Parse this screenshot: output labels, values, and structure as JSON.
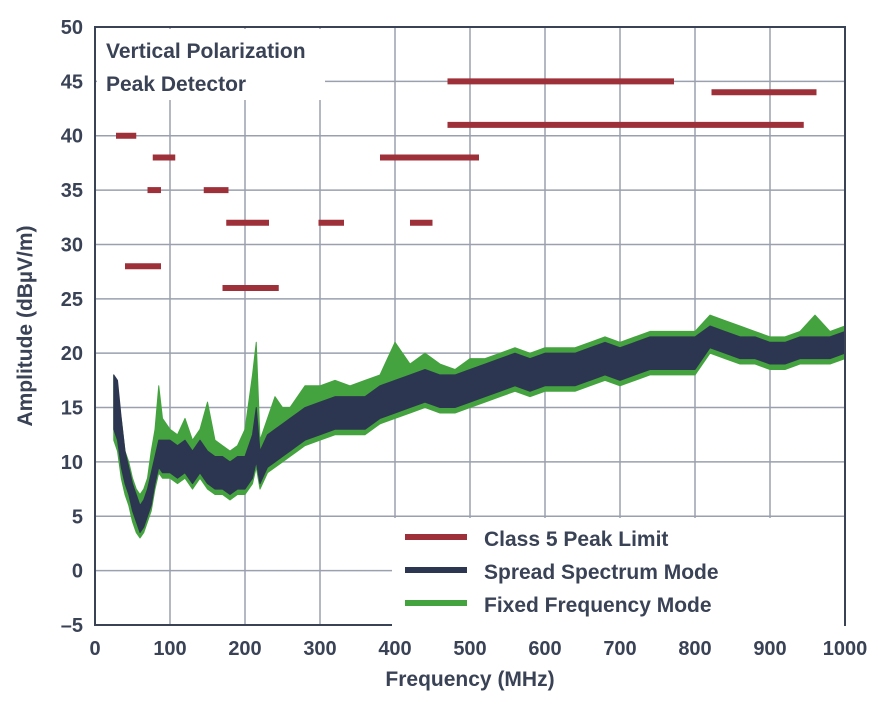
{
  "chart_data": {
    "type": "line",
    "annotations": [
      "Vertical Polarization",
      "Peak Detector"
    ],
    "xlabel": "Frequency (MHz)",
    "ylabel": "Amplitude (dBµV/m)",
    "xlim": [
      0,
      1000
    ],
    "ylim": [
      -5,
      50
    ],
    "x_ticks": [
      "0",
      "100",
      "200",
      "300",
      "400",
      "500",
      "600",
      "700",
      "800",
      "900",
      "1000"
    ],
    "y_ticks": [
      "50",
      "45",
      "40",
      "35",
      "30",
      "25",
      "20",
      "15",
      "10",
      "5",
      "0",
      "–5"
    ],
    "grid": true,
    "legend_position": "bottom-right",
    "series": [
      {
        "name": "Class 5 Peak Limit",
        "color": "#9e3039",
        "segments": [
          {
            "x": [
              28,
              55
            ],
            "y": 40
          },
          {
            "x": [
              77,
              107
            ],
            "y": 38
          },
          {
            "x": [
              70,
              88
            ],
            "y": 35
          },
          {
            "x": [
              145,
              178
            ],
            "y": 35
          },
          {
            "x": [
              40,
              88
            ],
            "y": 28
          },
          {
            "x": [
              175,
              232
            ],
            "y": 32
          },
          {
            "x": [
              170,
              245
            ],
            "y": 26
          },
          {
            "x": [
              298,
              332
            ],
            "y": 32
          },
          {
            "x": [
              420,
              450
            ],
            "y": 32
          },
          {
            "x": [
              380,
              512
            ],
            "y": 38
          },
          {
            "x": [
              470,
              772
            ],
            "y": 45
          },
          {
            "x": [
              470,
              945
            ],
            "y": 41
          },
          {
            "x": [
              822,
              962
            ],
            "y": 44
          }
        ]
      },
      {
        "name": "Spread Spectrum Mode",
        "color": "#2d3650",
        "x": [
          25,
          30,
          35,
          40,
          45,
          50,
          55,
          60,
          65,
          70,
          75,
          80,
          85,
          90,
          100,
          110,
          120,
          130,
          140,
          150,
          160,
          170,
          180,
          190,
          200,
          210,
          215,
          220,
          230,
          240,
          250,
          260,
          270,
          280,
          300,
          320,
          340,
          360,
          380,
          400,
          420,
          440,
          460,
          480,
          500,
          520,
          540,
          560,
          580,
          600,
          620,
          640,
          660,
          680,
          700,
          720,
          740,
          760,
          780,
          800,
          820,
          840,
          860,
          880,
          900,
          920,
          940,
          960,
          980,
          1000
        ],
        "low": [
          13,
          12,
          9.5,
          8,
          7,
          5.5,
          4.5,
          3.5,
          4,
          5,
          6,
          8,
          9.5,
          9,
          9,
          8.5,
          9,
          8,
          9,
          8,
          7.5,
          7.5,
          7,
          7.5,
          7.5,
          8.5,
          10,
          8,
          9.5,
          10,
          10.5,
          11,
          11.5,
          12,
          12.5,
          13,
          13,
          13,
          14,
          14.5,
          15,
          15.5,
          15,
          15,
          15.5,
          16,
          16.5,
          17,
          16.5,
          17,
          17,
          17,
          17.5,
          18,
          17.5,
          18,
          18.5,
          18.5,
          18.5,
          18.5,
          20.5,
          20,
          19.5,
          19.5,
          19,
          19,
          19.5,
          19.5,
          19.5,
          20
        ],
        "high": [
          18,
          17.5,
          14,
          11,
          9.5,
          8,
          7,
          6,
          6.5,
          7.5,
          9,
          10.5,
          12,
          12,
          12,
          11.5,
          12,
          11,
          12,
          11,
          10.5,
          10.5,
          10,
          10.5,
          10.5,
          12.5,
          15,
          11,
          12.5,
          13,
          13.5,
          14,
          14.5,
          15,
          15.5,
          16,
          16,
          16,
          17,
          17.5,
          18,
          18.5,
          18,
          18,
          18.5,
          19,
          19.5,
          20,
          19.5,
          20,
          20,
          20,
          20.5,
          21,
          20.5,
          21,
          21.5,
          21.5,
          21.5,
          21.5,
          22.5,
          22,
          21.5,
          21.5,
          21,
          21,
          21.5,
          21.5,
          21.5,
          22
        ]
      },
      {
        "name": "Fixed Frequency Mode",
        "color": "#44a33f",
        "x": [
          25,
          30,
          35,
          40,
          45,
          50,
          55,
          60,
          65,
          70,
          75,
          80,
          85,
          90,
          100,
          110,
          120,
          130,
          140,
          150,
          160,
          170,
          180,
          190,
          200,
          210,
          215,
          220,
          230,
          240,
          250,
          260,
          270,
          280,
          300,
          320,
          340,
          360,
          380,
          400,
          420,
          440,
          460,
          480,
          500,
          520,
          540,
          560,
          580,
          600,
          620,
          640,
          660,
          680,
          700,
          720,
          740,
          760,
          780,
          800,
          820,
          840,
          860,
          880,
          900,
          920,
          940,
          960,
          980,
          1000
        ],
        "low": [
          12,
          11,
          8.5,
          7,
          6,
          4.5,
          3.5,
          3,
          3.5,
          4.5,
          5.5,
          7.5,
          9,
          8.5,
          8.5,
          8,
          8.5,
          7.5,
          8.5,
          7.5,
          7,
          7,
          6.5,
          7,
          7,
          8,
          9.5,
          7.5,
          9,
          9.5,
          10,
          10.5,
          11,
          11.5,
          12,
          12.5,
          12.5,
          12.5,
          13.5,
          14,
          14.5,
          15,
          14.5,
          14.5,
          15,
          15.5,
          16,
          16.5,
          16,
          16.5,
          16.5,
          16.5,
          17,
          17.5,
          17,
          17.5,
          18,
          18,
          18,
          18,
          20,
          19.5,
          19,
          19,
          18.5,
          18.5,
          19,
          19,
          19,
          19.5
        ],
        "high": [
          18,
          16,
          14,
          11,
          10,
          8.5,
          7.5,
          7,
          7.5,
          8.5,
          11,
          13,
          17,
          14,
          13,
          12.5,
          14,
          12,
          13,
          15.5,
          12,
          11.5,
          11,
          11.5,
          13,
          18,
          21,
          12,
          14,
          16,
          15,
          15,
          16,
          17,
          17,
          17.5,
          17,
          17.5,
          18,
          21,
          19,
          20,
          19,
          18.5,
          19.5,
          19.5,
          20,
          20.5,
          20,
          20.5,
          20.5,
          20.5,
          21,
          21.5,
          21,
          21.5,
          22,
          22,
          22,
          22,
          23.5,
          23,
          22.5,
          22,
          21.5,
          21.5,
          22,
          23.5,
          22,
          22.5
        ]
      }
    ]
  }
}
